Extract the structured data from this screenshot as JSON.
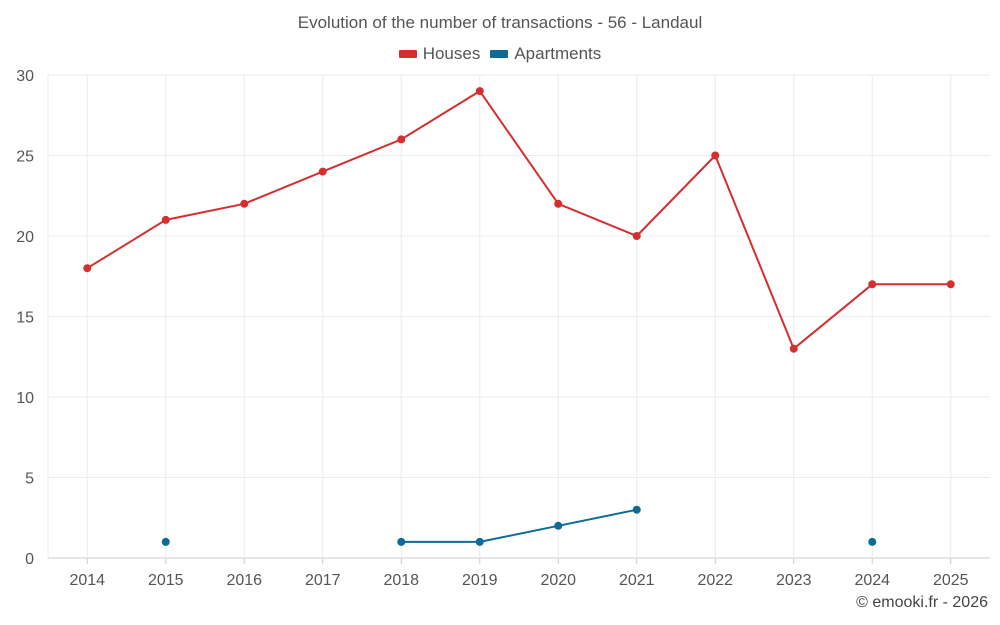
{
  "chart_data": {
    "type": "line",
    "title": "Evolution of the number of transactions - 56 - Landaul",
    "x": [
      "2014",
      "2015",
      "2016",
      "2017",
      "2018",
      "2019",
      "2020",
      "2021",
      "2022",
      "2023",
      "2024",
      "2025"
    ],
    "ylim": [
      0,
      30
    ],
    "yticks": [
      "0",
      "5",
      "10",
      "15",
      "20",
      "25",
      "30"
    ],
    "xlabel": "",
    "ylabel": "",
    "grid": true,
    "legend_position": "top-center",
    "series": [
      {
        "name": "Houses",
        "color": "#d32f2f",
        "values": [
          18,
          21,
          22,
          24,
          26,
          29,
          22,
          20,
          25,
          13,
          17,
          17
        ]
      },
      {
        "name": "Apartments",
        "color": "#0f6a96",
        "values": [
          null,
          1,
          null,
          null,
          1,
          1,
          2,
          3,
          null,
          null,
          1,
          null
        ]
      }
    ]
  },
  "credit": "© emooki.fr - 2026"
}
